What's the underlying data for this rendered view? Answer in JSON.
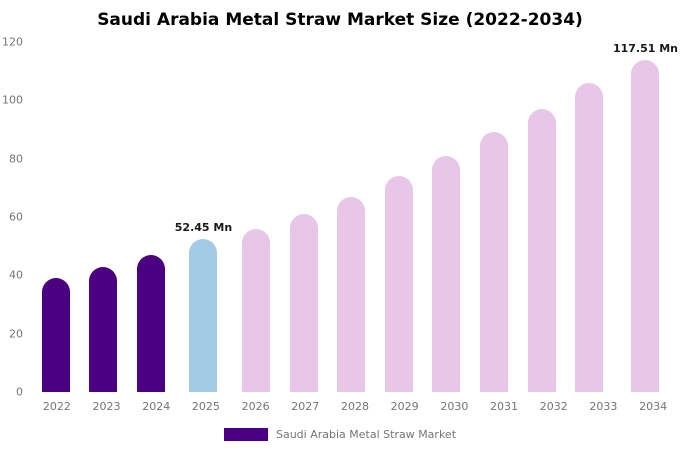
{
  "chart_data": {
    "type": "bar",
    "title": "Saudi Arabia Metal Straw Market Size (2022-2034)",
    "categories": [
      "2022",
      "2023",
      "2024",
      "2025",
      "2026",
      "2027",
      "2028",
      "2029",
      "2030",
      "2031",
      "2032",
      "2033",
      "2034"
    ],
    "values": [
      39,
      43,
      47,
      52.45,
      56,
      61,
      67,
      74,
      81,
      89,
      97,
      106,
      117.51
    ],
    "unit": "Mn",
    "ylim": [
      0,
      120
    ],
    "yticks": [
      0,
      20,
      40,
      60,
      80,
      100,
      120
    ],
    "grid": false,
    "colors": [
      "#4B0082",
      "#4B0082",
      "#4B0082",
      "#A3CBE3",
      "#E8C6E8",
      "#E8C6E8",
      "#E8C6E8",
      "#E8C6E8",
      "#E8C6E8",
      "#E8C6E8",
      "#E8C6E8",
      "#E8C6E8",
      "#E8C6E8"
    ],
    "value_labels": [
      {
        "index": 3,
        "text": "52.45 Mn"
      },
      {
        "index": 12,
        "text": "117.51 Mn"
      }
    ],
    "legend": "Saudi Arabia Metal Straw Market",
    "legend_color": "#4B0082",
    "legend_position": "bottom"
  }
}
